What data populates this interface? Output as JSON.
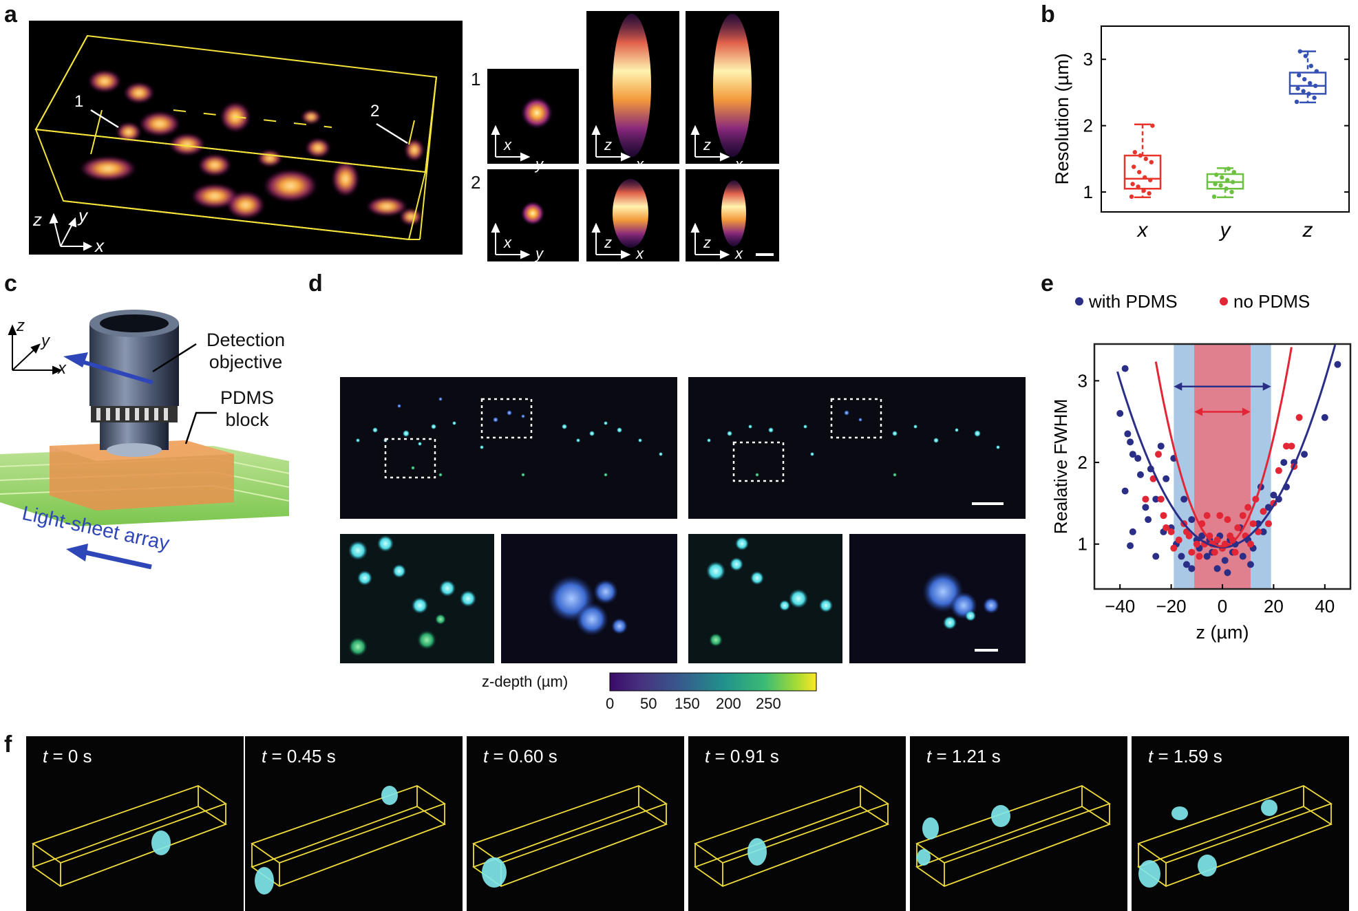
{
  "panels": {
    "a": "a",
    "b": "b",
    "c": "c",
    "d": "d",
    "e": "e",
    "f": "f"
  },
  "panel_a": {
    "roi_labels": [
      "1",
      "2"
    ],
    "axes_3d": [
      "z",
      "y",
      "x"
    ],
    "psf_rows": [
      {
        "row": "1",
        "views": [
          {
            "h": "y",
            "v": "x"
          },
          {
            "h": "x",
            "v": "z"
          },
          {
            "h": "x",
            "v": "z"
          }
        ]
      },
      {
        "row": "2",
        "views": [
          {
            "h": "y",
            "v": "x"
          },
          {
            "h": "x",
            "v": "z"
          },
          {
            "h": "x",
            "v": "z"
          }
        ]
      }
    ]
  },
  "panel_c": {
    "axes": [
      "z",
      "y",
      "x"
    ],
    "detection_label_1": "Detection",
    "detection_label_2": "objective",
    "pdms_label_1": "PDMS",
    "pdms_label_2": "block",
    "lightsheet_label": "Light-sheet array"
  },
  "panel_d": {
    "colorbar_label": "z-depth (µm)",
    "colorbar_ticks": [
      "0",
      "50",
      "150",
      "200",
      "250"
    ]
  },
  "panel_f": {
    "frames": [
      {
        "t": "t",
        "time": " = 0 s"
      },
      {
        "t": "t",
        "time": " = 0.45 s"
      },
      {
        "t": "t",
        "time": " = 0.60 s"
      },
      {
        "t": "t",
        "time": " = 0.91 s"
      },
      {
        "t": "t",
        "time": " = 1.21 s"
      },
      {
        "t": "t",
        "time": " = 1.59 s"
      }
    ]
  },
  "chart_data": [
    {
      "id": "b",
      "type": "box",
      "title": "",
      "ylabel": "Resolution (µm)",
      "xlabel": "",
      "categories": [
        "x",
        "y",
        "z"
      ],
      "ylim": [
        0.7,
        3.5
      ],
      "yticks": [
        1,
        2,
        3
      ],
      "colors": [
        "#e8342a",
        "#6cc13f",
        "#3550b5"
      ],
      "boxes": [
        {
          "name": "x",
          "min": 0.92,
          "q1": 1.05,
          "median": 1.2,
          "q3": 1.55,
          "max": 2.02,
          "points": [
            0.93,
            0.98,
            1.02,
            1.08,
            1.12,
            1.18,
            1.22,
            1.3,
            1.38,
            1.45,
            1.5,
            1.55,
            1.6,
            2.0
          ]
        },
        {
          "name": "y",
          "min": 0.92,
          "q1": 1.05,
          "median": 1.15,
          "q3": 1.27,
          "max": 1.36,
          "points": [
            0.93,
            1.0,
            1.05,
            1.1,
            1.12,
            1.15,
            1.18,
            1.22,
            1.26,
            1.3,
            1.35
          ]
        },
        {
          "name": "z",
          "min": 2.35,
          "q1": 2.48,
          "median": 2.6,
          "q3": 2.8,
          "max": 3.12,
          "points": [
            2.36,
            2.42,
            2.48,
            2.52,
            2.56,
            2.6,
            2.64,
            2.7,
            2.76,
            2.82,
            2.9,
            3.05,
            3.12
          ]
        }
      ]
    },
    {
      "id": "e",
      "type": "scatter",
      "title": "",
      "xlabel": "z (µm)",
      "ylabel": "Realative FWHM",
      "xlim": [
        -50,
        50
      ],
      "ylim": [
        0.45,
        3.45
      ],
      "xticks": [
        -40,
        -20,
        0,
        20,
        40
      ],
      "xtick_labels": [
        "−40",
        "−20",
        "0",
        "20",
        "40"
      ],
      "yticks": [
        1,
        2,
        3
      ],
      "legend": [
        {
          "name": "with PDMS",
          "color": "#2a2e86"
        },
        {
          "name": "no PDMS",
          "color": "#e32636"
        }
      ],
      "shaded_regions": [
        {
          "series": "with PDMS",
          "x": [
            -19,
            19
          ],
          "color": "#a9c8e6"
        },
        {
          "series": "no PDMS",
          "x": [
            -11,
            11
          ],
          "color": "#e0808e"
        }
      ],
      "arrows": [
        {
          "series": "with PDMS",
          "x": [
            -19,
            19
          ],
          "y": 2.93
        },
        {
          "series": "no PDMS",
          "x": [
            -11,
            11
          ],
          "y": 2.62
        }
      ],
      "series": [
        {
          "name": "with PDMS",
          "color": "#2a2e86",
          "fit": {
            "a": 0.00128,
            "b": 0.96,
            "x_range": [
              -41,
              45
            ]
          },
          "points": [
            [
              -38,
              3.15
            ],
            [
              -40,
              2.6
            ],
            [
              -37,
              2.35
            ],
            [
              -36,
              2.25
            ],
            [
              -35,
              2.1
            ],
            [
              -33,
              2.05
            ],
            [
              -32,
              1.85
            ],
            [
              -38,
              1.65
            ],
            [
              -30,
              1.45
            ],
            [
              -29,
              1.3
            ],
            [
              -35,
              1.15
            ],
            [
              -26,
              1.55
            ],
            [
              -24,
              2.2
            ],
            [
              -22,
              1.8
            ],
            [
              -20,
              1.2
            ],
            [
              -18,
              1.0
            ],
            [
              -16,
              0.85
            ],
            [
              -14,
              0.75
            ],
            [
              -12,
              1.3
            ],
            [
              -10,
              1.05
            ],
            [
              -9,
              0.95
            ],
            [
              -8,
              1.1
            ],
            [
              -6,
              0.85
            ],
            [
              -5,
              1.05
            ],
            [
              -4,
              0.9
            ],
            [
              -3,
              1.0
            ],
            [
              -2,
              0.7
            ],
            [
              -1,
              1.1
            ],
            [
              0,
              0.95
            ],
            [
              1,
              0.8
            ],
            [
              2,
              0.65
            ],
            [
              3,
              1.05
            ],
            [
              4,
              0.9
            ],
            [
              5,
              1.0
            ],
            [
              7,
              1.2
            ],
            [
              8,
              0.85
            ],
            [
              10,
              1.05
            ],
            [
              12,
              0.95
            ],
            [
              14,
              1.25
            ],
            [
              16,
              1.15
            ],
            [
              18,
              1.45
            ],
            [
              20,
              1.6
            ],
            [
              22,
              1.55
            ],
            [
              25,
              1.7
            ],
            [
              28,
              2.0
            ],
            [
              32,
              2.1
            ],
            [
              40,
              2.55
            ],
            [
              45,
              3.2
            ],
            [
              -36,
              0.98
            ],
            [
              -23,
              1.15
            ],
            [
              -26,
              0.85
            ],
            [
              -15,
              1.55
            ],
            [
              11,
              0.75
            ],
            [
              -19,
              2.05
            ],
            [
              15,
              1.7
            ],
            [
              -28,
              1.92
            ],
            [
              24,
              2.0
            ],
            [
              -12,
              0.7
            ]
          ]
        },
        {
          "name": "no PDMS",
          "color": "#e32636",
          "fit": {
            "a": 0.00335,
            "b": 0.97,
            "x_range": [
              -26,
              31
            ]
          },
          "points": [
            [
              -27,
              1.8
            ],
            [
              -24,
              1.55
            ],
            [
              -23,
              1.35
            ],
            [
              -22,
              1.2
            ],
            [
              -20,
              1.15
            ],
            [
              -19,
              0.95
            ],
            [
              -17,
              1.05
            ],
            [
              -15,
              1.25
            ],
            [
              -13,
              1.1
            ],
            [
              -12,
              0.9
            ],
            [
              -10,
              1.0
            ],
            [
              -9,
              0.85
            ],
            [
              -7,
              1.0
            ],
            [
              -6,
              1.35
            ],
            [
              -5,
              1.1
            ],
            [
              -4,
              1.0
            ],
            [
              -3,
              0.9
            ],
            [
              -2,
              1.05
            ],
            [
              -1,
              1.35
            ],
            [
              0,
              0.95
            ],
            [
              1,
              1.0
            ],
            [
              2,
              1.3
            ],
            [
              3,
              1.1
            ],
            [
              4,
              1.05
            ],
            [
              5,
              0.9
            ],
            [
              6,
              1.2
            ],
            [
              8,
              1.35
            ],
            [
              9,
              1.1
            ],
            [
              11,
              1.0
            ],
            [
              12,
              1.25
            ],
            [
              14,
              1.15
            ],
            [
              16,
              1.4
            ],
            [
              18,
              1.25
            ],
            [
              20,
              1.5
            ],
            [
              22,
              1.9
            ],
            [
              25,
              2.2
            ],
            [
              27,
              2.2
            ],
            [
              30,
              2.55
            ],
            [
              -25,
              2.1
            ],
            [
              -14,
              1.15
            ],
            [
              13,
              1.55
            ],
            [
              -30,
              1.55
            ],
            [
              28,
              1.95
            ],
            [
              -8,
              1.25
            ],
            [
              10,
              1.45
            ]
          ]
        }
      ]
    }
  ]
}
